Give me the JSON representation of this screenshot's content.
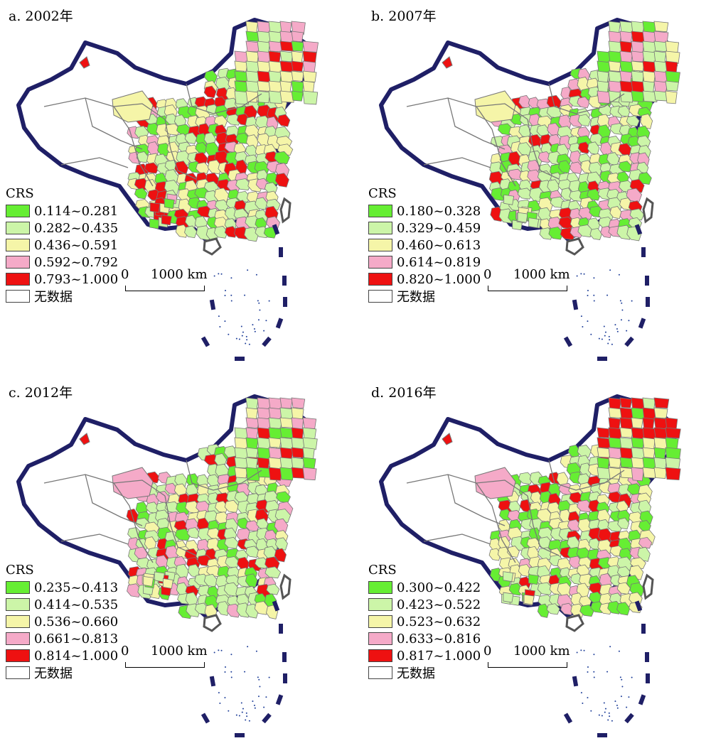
{
  "legend_title": "CRS",
  "no_data_label": "无数据",
  "scale": {
    "zero": "0",
    "distance": "1000 km"
  },
  "colors": {
    "class1": "#66ee33",
    "class2": "#ccf5a8",
    "class3": "#f5f5a8",
    "class4": "#f5aac8",
    "class5": "#ee1111",
    "nodata": "#ffffff",
    "border": "#1f1f66",
    "province": "#777777"
  },
  "panels": [
    {
      "title": "a. 2002年",
      "classes": [
        "0.114~0.281",
        "0.282~0.435",
        "0.436~0.591",
        "0.592~0.792",
        "0.793~1.000"
      ]
    },
    {
      "title": "b. 2007年",
      "classes": [
        "0.180~0.328",
        "0.329~0.459",
        "0.460~0.613",
        "0.614~0.819",
        "0.820~1.000"
      ]
    },
    {
      "title": "c. 2012年",
      "classes": [
        "0.235~0.413",
        "0.414~0.535",
        "0.536~0.660",
        "0.661~0.813",
        "0.814~1.000"
      ]
    },
    {
      "title": "d. 2016年",
      "classes": [
        "0.300~0.422",
        "0.423~0.522",
        "0.523~0.632",
        "0.633~0.816",
        "0.817~1.000"
      ]
    }
  ]
}
